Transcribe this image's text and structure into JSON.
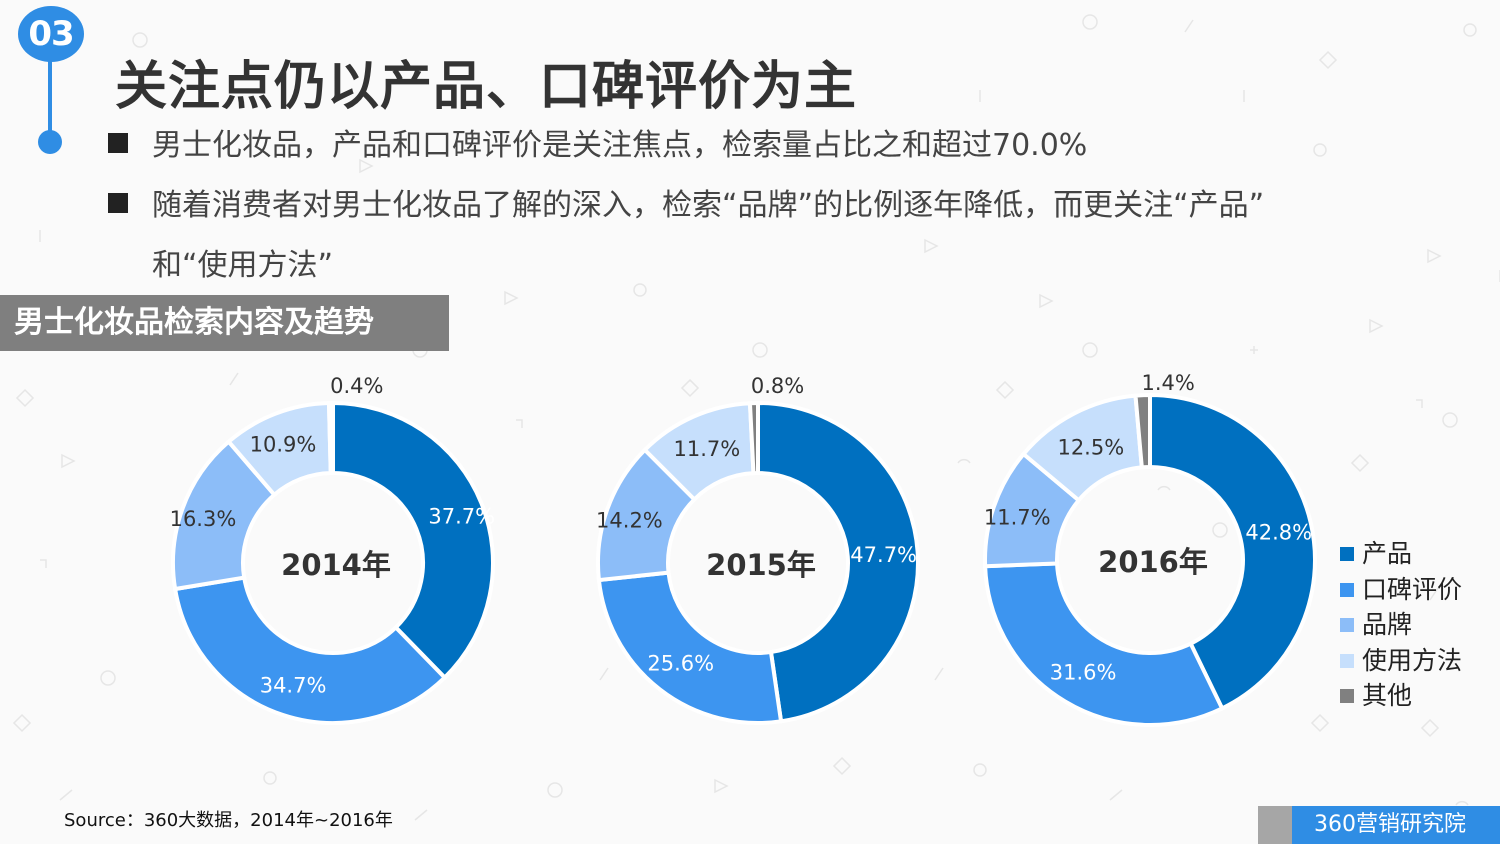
{
  "header": {
    "badge_number": "03",
    "title": "关注点仍以产品、口碑评价为主"
  },
  "bullets": {
    "line1": "男士化妆品，产品和口碑评价是关注焦点，检索量占比之和超过70.0%",
    "line2a": "随着消费者对男士化妆品了解的深入，检索“品牌”的比例逐年降低，而更关注“产品”",
    "line2b": "和“使用方法”"
  },
  "section_label": "男士化妆品检索内容及趋势",
  "legend": {
    "items": [
      "产品",
      "口碑评价",
      "品牌",
      "使用方法",
      "其他"
    ]
  },
  "colors": {
    "accent": "#2f8de4",
    "series": [
      "#0070c0",
      "#3d95f0",
      "#8cbdf8",
      "#c6dffc",
      "#808080"
    ]
  },
  "source": "Source：360大数据，2014年~2016年",
  "footer_brand": "360营销研究院",
  "chart_data": [
    {
      "type": "pie",
      "title": "2014年",
      "categories": [
        "产品",
        "口碑评价",
        "品牌",
        "使用方法",
        "其他"
      ],
      "values": [
        37.7,
        34.7,
        16.3,
        10.9,
        0.4
      ],
      "labels": [
        "37.7%",
        "34.7%",
        "16.3%",
        "10.9%",
        "0.4%"
      ]
    },
    {
      "type": "pie",
      "title": "2015年",
      "categories": [
        "产品",
        "口碑评价",
        "品牌",
        "使用方法",
        "其他"
      ],
      "values": [
        47.7,
        25.6,
        14.2,
        11.7,
        0.8
      ],
      "labels": [
        "47.7%",
        "25.6%",
        "14.2%",
        "11.7%",
        "0.8%"
      ]
    },
    {
      "type": "pie",
      "title": "2016年",
      "categories": [
        "产品",
        "口碑评价",
        "品牌",
        "使用方法",
        "其他"
      ],
      "values": [
        42.8,
        31.6,
        11.7,
        12.5,
        1.4
      ],
      "labels": [
        "42.8%",
        "31.6%",
        "11.7%",
        "12.5%",
        "1.4%"
      ]
    }
  ]
}
